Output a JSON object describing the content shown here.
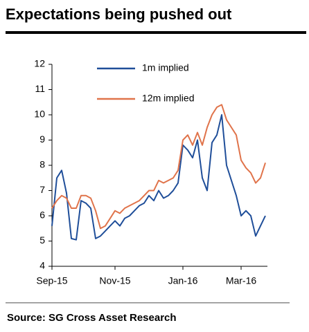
{
  "chart_data": {
    "type": "line",
    "title": "Expectations being pushed out",
    "source": "Source: SG Cross Asset Research",
    "categories": [
      "Sep-15",
      null,
      null,
      null,
      null,
      null,
      null,
      null,
      null,
      null,
      null,
      null,
      null,
      "Nov-15",
      null,
      null,
      null,
      null,
      null,
      null,
      null,
      null,
      null,
      null,
      null,
      null,
      null,
      "Jan-16",
      null,
      null,
      null,
      null,
      null,
      null,
      null,
      null,
      null,
      null,
      null,
      "Mar-16",
      null,
      null,
      null,
      null,
      null
    ],
    "series": [
      {
        "name": "1m implied",
        "color": "#1f4e99",
        "values": [
          5.6,
          7.5,
          7.8,
          6.9,
          5.1,
          5.05,
          6.6,
          6.5,
          6.3,
          5.1,
          5.2,
          5.4,
          5.6,
          5.8,
          5.6,
          5.9,
          6.0,
          6.2,
          6.4,
          6.5,
          6.8,
          6.6,
          7.0,
          6.7,
          6.8,
          7.0,
          7.3,
          8.8,
          8.6,
          8.3,
          9.0,
          7.5,
          7.0,
          8.9,
          9.2,
          10.0,
          8.0,
          7.4,
          6.8,
          6.0,
          6.2,
          6.0,
          5.2,
          5.6,
          6.0
        ]
      },
      {
        "name": "12m implied",
        "color": "#e0734a",
        "values": [
          6.3,
          6.6,
          6.8,
          6.7,
          6.3,
          6.3,
          6.8,
          6.8,
          6.7,
          6.2,
          5.5,
          5.6,
          5.9,
          6.2,
          6.1,
          6.3,
          6.4,
          6.5,
          6.6,
          6.8,
          7.0,
          7.0,
          7.4,
          7.3,
          7.4,
          7.5,
          7.8,
          9.0,
          9.2,
          8.8,
          9.3,
          8.8,
          9.5,
          10.0,
          10.3,
          10.4,
          9.8,
          9.5,
          9.2,
          8.2,
          7.9,
          7.7,
          7.3,
          7.5,
          8.1
        ]
      }
    ],
    "ylim": [
      4,
      12
    ],
    "yticks": [
      4,
      5,
      6,
      7,
      8,
      9,
      10,
      11,
      12
    ],
    "grid": false
  }
}
